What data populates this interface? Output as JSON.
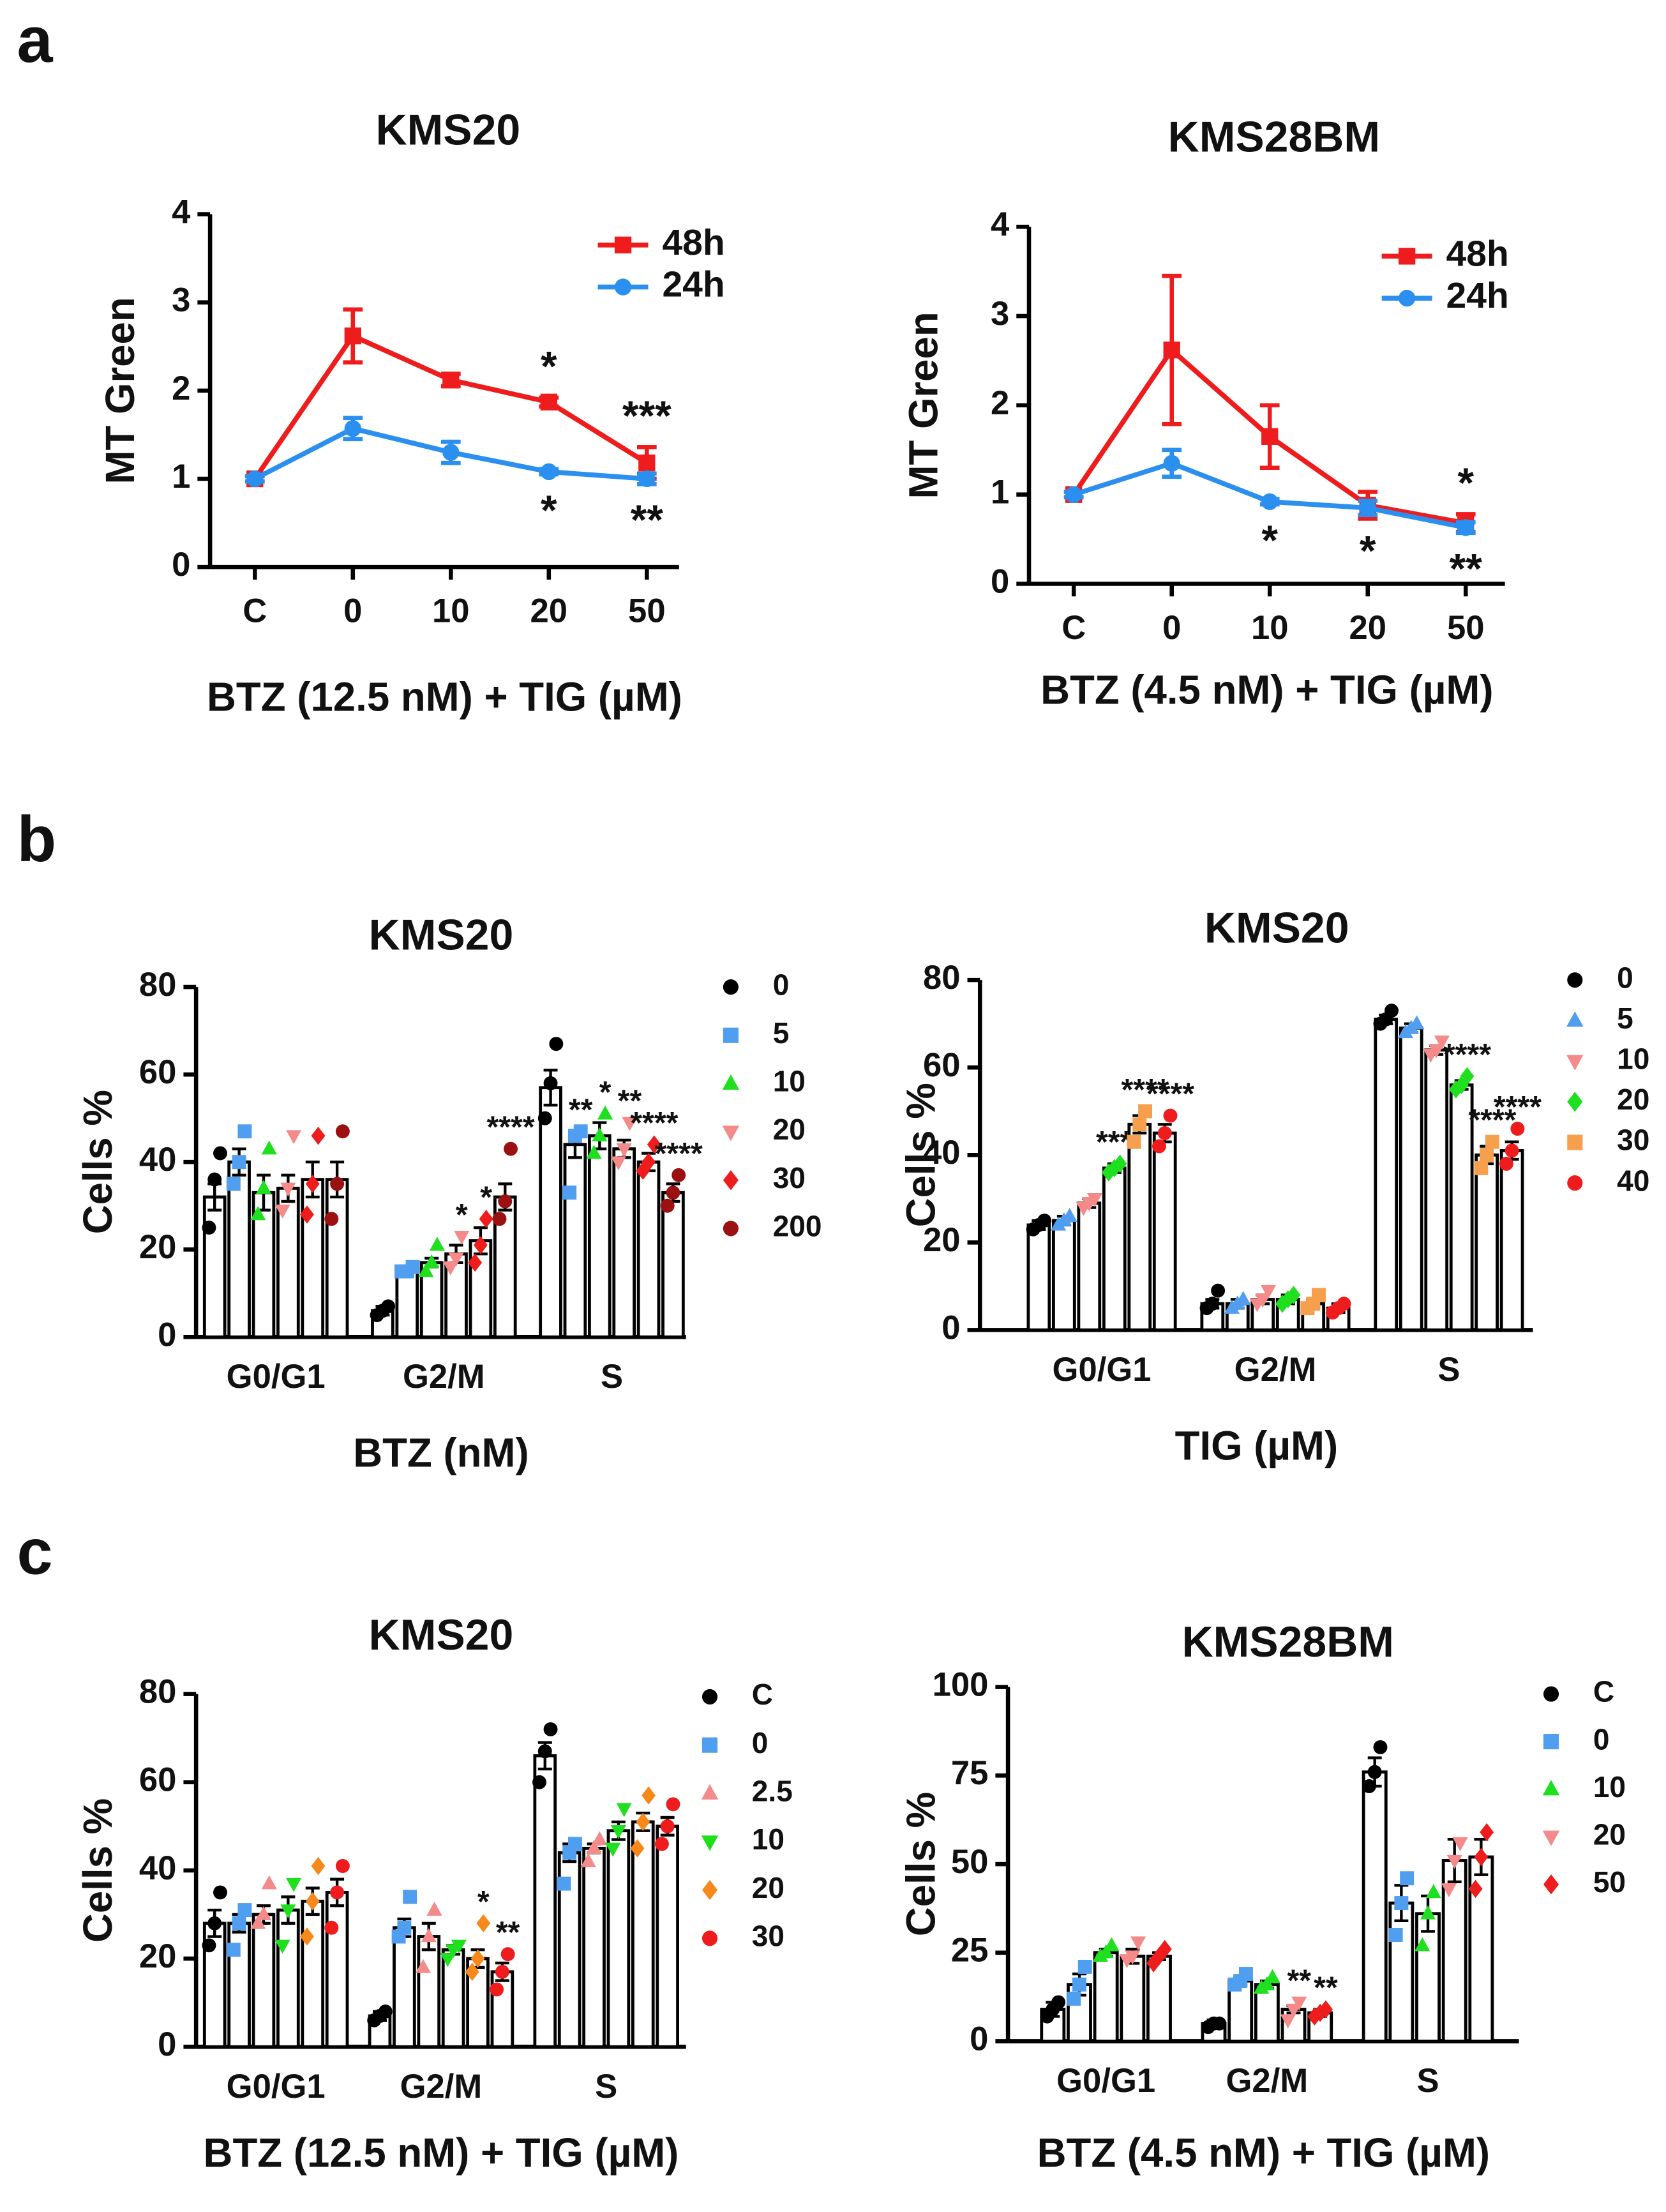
{
  "panel_labels": [
    "a",
    "b",
    "c"
  ],
  "chart_data": [
    {
      "type": "line",
      "title": "KMS20",
      "x_label": "BTZ (12.5 nM) + TIG (µM)",
      "y_label": "MT Green",
      "categories": [
        "C",
        "0",
        "10",
        "20",
        "50"
      ],
      "ylim": [
        0,
        4
      ],
      "yticks": [
        0,
        1,
        2,
        3,
        4
      ],
      "legend": "upper right",
      "series": [
        {
          "name": "48h",
          "color": "#ee1c1c",
          "marker": "square",
          "values": [
            1,
            2.62,
            2.12,
            1.87,
            1.18
          ],
          "errors": [
            0.03,
            0.3,
            0.07,
            0.05,
            0.18
          ],
          "labels": [
            null,
            null,
            null,
            "*",
            "***"
          ]
        },
        {
          "name": "24h",
          "color": "#2b8ff0",
          "marker": "circle",
          "values": [
            1,
            1.57,
            1.3,
            1.08,
            1.0
          ],
          "errors": [
            0.03,
            0.12,
            0.12,
            0.03,
            0.06
          ],
          "labels": [
            null,
            null,
            null,
            "*",
            "**"
          ]
        }
      ]
    },
    {
      "type": "line",
      "title": "KMS28BM",
      "x_label": "BTZ (4.5 nM) + TIG (µM)",
      "y_label": "MT Green",
      "categories": [
        "C",
        "0",
        "10",
        "20",
        "50"
      ],
      "ylim": [
        0,
        4
      ],
      "yticks": [
        0,
        1,
        2,
        3,
        4
      ],
      "legend": "upper right",
      "series": [
        {
          "name": "48h",
          "color": "#ee1c1c",
          "marker": "square",
          "values": [
            1,
            2.62,
            1.65,
            0.88,
            0.68
          ],
          "errors": [
            0.03,
            0.83,
            0.35,
            0.15,
            0.1
          ],
          "labels": [
            null,
            null,
            null,
            null,
            "*"
          ]
        },
        {
          "name": "24h",
          "color": "#2b8ff0",
          "marker": "circle",
          "values": [
            1,
            1.35,
            0.92,
            0.85,
            0.63
          ],
          "errors": [
            0.03,
            0.15,
            0.03,
            0.08,
            0.06
          ],
          "labels": [
            null,
            null,
            "*",
            "*",
            "**"
          ]
        }
      ]
    },
    {
      "type": "bar",
      "title": "KMS20",
      "x_label": "BTZ (nM)",
      "y_label": "Cells %",
      "categories": [
        "G0/G1",
        "G2/M",
        "S"
      ],
      "ylim": [
        0,
        80
      ],
      "yticks": [
        0,
        20,
        40,
        60,
        80
      ],
      "legend": "right",
      "series": [
        {
          "name": "0",
          "color": "#000000",
          "marker": "circle",
          "values": [
            32,
            6,
            57
          ],
          "errors": [
            3,
            1,
            4
          ],
          "points": [
            [
              25,
              36,
              42
            ],
            [
              5,
              6,
              7
            ],
            [
              50,
              58,
              67
            ]
          ],
          "labels": [
            null,
            null,
            null
          ]
        },
        {
          "name": "5",
          "color": "#4f9ef0",
          "marker": "square",
          "values": [
            40,
            15,
            44
          ],
          "errors": [
            3,
            1,
            3
          ],
          "points": [
            [
              35,
              40,
              47
            ],
            [
              15,
              15,
              16
            ],
            [
              33,
              46,
              47
            ]
          ],
          "labels": [
            null,
            null,
            "**"
          ]
        },
        {
          "name": "10",
          "color": "#1ee01e",
          "marker": "triangle",
          "values": [
            33,
            17,
            46
          ],
          "errors": [
            4,
            1,
            3
          ],
          "points": [
            [
              28,
              34,
              43
            ],
            [
              15,
              17,
              21
            ],
            [
              42,
              46,
              51
            ]
          ],
          "labels": [
            null,
            null,
            "*"
          ]
        },
        {
          "name": "20",
          "color": "#f48a8a",
          "marker": "triangle-down",
          "values": [
            34,
            19,
            43
          ],
          "errors": [
            3,
            2,
            2
          ],
          "points": [
            [
              29,
              34,
              46
            ],
            [
              16,
              18,
              23
            ],
            [
              40,
              43,
              49
            ]
          ],
          "labels": [
            null,
            "*",
            "**"
          ]
        },
        {
          "name": "30",
          "color": "#ee1c1c",
          "marker": "diamond",
          "values": [
            36,
            22,
            40
          ],
          "errors": [
            4,
            3,
            2
          ],
          "points": [
            [
              28,
              35,
              46
            ],
            [
              17,
              21,
              27
            ],
            [
              38,
              40,
              44
            ]
          ],
          "labels": [
            null,
            "*",
            "****"
          ]
        },
        {
          "name": "200",
          "color": "#9b1010",
          "marker": "circle",
          "values": [
            36,
            32,
            33
          ],
          "errors": [
            4,
            3,
            2
          ],
          "points": [
            [
              27,
              35,
              47
            ],
            [
              27,
              31,
              43
            ],
            [
              30,
              33,
              37
            ]
          ],
          "labels": [
            null,
            "****",
            "****"
          ]
        }
      ]
    },
    {
      "type": "bar",
      "title": "KMS20",
      "x_label": "TIG (µM)",
      "y_label": "Cells %",
      "categories": [
        "G0/G1",
        "G2/M",
        "S"
      ],
      "ylim": [
        0,
        80
      ],
      "yticks": [
        0,
        20,
        40,
        60,
        80
      ],
      "legend": "right",
      "series": [
        {
          "name": "0",
          "color": "#000000",
          "marker": "circle",
          "values": [
            24,
            6,
            71
          ],
          "errors": [
            1,
            1,
            1
          ],
          "points": [
            [
              23,
              24,
              25
            ],
            [
              5,
              6,
              9
            ],
            [
              70,
              71,
              73
            ]
          ],
          "labels": [
            null,
            null,
            null
          ]
        },
        {
          "name": "5",
          "color": "#4f9ef0",
          "marker": "triangle",
          "values": [
            25,
            6,
            69
          ],
          "errors": [
            1,
            1,
            1
          ],
          "points": [
            [
              24,
              25,
              26
            ],
            [
              5,
              6,
              7
            ],
            [
              68,
              69,
              70
            ]
          ],
          "labels": [
            null,
            null,
            null
          ]
        },
        {
          "name": "10",
          "color": "#f48a8a",
          "marker": "triangle-down",
          "values": [
            29,
            7,
            64
          ],
          "errors": [
            1,
            1,
            1
          ],
          "points": [
            [
              28,
              29,
              30
            ],
            [
              6,
              7,
              9
            ],
            [
              63,
              64,
              66
            ]
          ],
          "labels": [
            null,
            null,
            null
          ]
        },
        {
          "name": "20",
          "color": "#1ee01e",
          "marker": "diamond",
          "values": [
            37,
            7,
            56
          ],
          "errors": [
            1,
            1,
            1
          ],
          "points": [
            [
              36,
              37,
              38
            ],
            [
              6,
              7,
              8
            ],
            [
              55,
              56,
              58
            ]
          ],
          "labels": [
            "****",
            null,
            "****"
          ]
        },
        {
          "name": "30",
          "color": "#f6a04e",
          "marker": "square",
          "values": [
            47,
            6,
            40
          ],
          "errors": [
            2,
            1,
            2
          ],
          "points": [
            [
              43,
              47,
              50
            ],
            [
              5,
              6,
              8
            ],
            [
              37,
              40,
              43
            ]
          ],
          "labels": [
            "****",
            null,
            "****"
          ]
        },
        {
          "name": "40",
          "color": "#ee1c1c",
          "marker": "circle",
          "values": [
            45,
            5,
            41
          ],
          "errors": [
            2,
            1,
            2
          ],
          "points": [
            [
              42,
              45,
              49
            ],
            [
              4,
              5,
              6
            ],
            [
              38,
              41,
              46
            ]
          ],
          "labels": [
            "****",
            null,
            "****"
          ]
        }
      ]
    },
    {
      "type": "bar",
      "title": "KMS20",
      "x_label": "BTZ (12.5 nM) + TIG (µM)",
      "y_label": "Cells %",
      "categories": [
        "G0/G1",
        "G2/M",
        "S"
      ],
      "ylim": [
        0,
        80
      ],
      "yticks": [
        0,
        20,
        40,
        60,
        80
      ],
      "legend": "right",
      "series": [
        {
          "name": "C",
          "color": "#000000",
          "marker": "circle",
          "values": [
            28,
            7,
            66
          ],
          "errors": [
            3,
            1,
            3
          ],
          "points": [
            [
              23,
              28,
              35
            ],
            [
              6,
              7,
              8
            ],
            [
              60,
              67,
              72
            ]
          ],
          "labels": [
            null,
            null,
            null
          ]
        },
        {
          "name": "0",
          "color": "#4f9ef0",
          "marker": "square",
          "values": [
            28,
            27,
            44
          ],
          "errors": [
            2,
            2,
            2
          ],
          "points": [
            [
              22,
              28,
              31
            ],
            [
              25,
              27,
              34
            ],
            [
              37,
              44,
              46
            ]
          ],
          "labels": [
            null,
            null,
            null
          ]
        },
        {
          "name": "2.5",
          "color": "#f48a8a",
          "marker": "triangle",
          "values": [
            30,
            25,
            45
          ],
          "errors": [
            2,
            3,
            1
          ],
          "points": [
            [
              28,
              30,
              37
            ],
            [
              18,
              25,
              31
            ],
            [
              42,
              45,
              47
            ]
          ],
          "labels": [
            null,
            null,
            null
          ]
        },
        {
          "name": "10",
          "color": "#1ee01e",
          "marker": "triangle-down",
          "values": [
            31,
            22,
            49
          ],
          "errors": [
            3,
            1,
            2
          ],
          "points": [
            [
              23,
              31,
              37
            ],
            [
              20,
              22,
              23
            ],
            [
              45,
              49,
              54
            ]
          ],
          "labels": [
            null,
            null,
            null
          ]
        },
        {
          "name": "20",
          "color": "#f7891c",
          "marker": "diamond",
          "values": [
            33,
            20,
            51
          ],
          "errors": [
            3,
            2,
            2
          ],
          "points": [
            [
              25,
              33,
              41
            ],
            [
              17,
              20,
              28
            ],
            [
              45,
              51,
              57
            ]
          ],
          "labels": [
            null,
            "*",
            null
          ]
        },
        {
          "name": "30",
          "color": "#ee1c1c",
          "marker": "circle",
          "values": [
            35,
            17,
            50
          ],
          "errors": [
            3,
            2,
            2
          ],
          "points": [
            [
              27,
              35,
              41
            ],
            [
              13,
              17,
              21
            ],
            [
              46,
              50,
              55
            ]
          ],
          "labels": [
            null,
            "**",
            null
          ]
        }
      ]
    },
    {
      "type": "bar",
      "title": "KMS28BM",
      "x_label": "BTZ (4.5 nM) + TIG (µM)",
      "y_label": "Cells %",
      "categories": [
        "G0/G1",
        "G2/M",
        "S"
      ],
      "ylim": [
        0,
        100
      ],
      "yticks": [
        0,
        25,
        50,
        75,
        100
      ],
      "legend": "right",
      "series": [
        {
          "name": "C",
          "color": "#000000",
          "marker": "circle",
          "values": [
            9,
            5,
            76
          ],
          "errors": [
            2,
            1,
            4
          ],
          "points": [
            [
              7,
              9,
              11
            ],
            [
              4,
              5,
              5
            ],
            [
              72,
              76,
              83
            ]
          ],
          "labels": [
            null,
            null,
            null
          ]
        },
        {
          "name": "0",
          "color": "#4f9ef0",
          "marker": "square",
          "values": [
            16,
            17,
            39
          ],
          "errors": [
            3,
            1,
            5
          ],
          "points": [
            [
              12,
              16,
              21
            ],
            [
              16,
              17,
              19
            ],
            [
              30,
              39,
              46
            ]
          ],
          "labels": [
            null,
            null,
            null
          ]
        },
        {
          "name": "10",
          "color": "#1ee01e",
          "marker": "triangle",
          "values": [
            25,
            16,
            36
          ],
          "errors": [
            1,
            1,
            5
          ],
          "points": [
            [
              24,
              25,
              27
            ],
            [
              15,
              16,
              18
            ],
            [
              27,
              36,
              42
            ]
          ],
          "labels": [
            null,
            null,
            null
          ]
        },
        {
          "name": "20",
          "color": "#f48a8a",
          "marker": "triangle-down",
          "values": [
            24,
            9,
            51
          ],
          "errors": [
            2,
            1,
            6
          ],
          "points": [
            [
              23,
              24,
              28
            ],
            [
              6,
              9,
              11
            ],
            [
              43,
              51,
              56
            ]
          ],
          "labels": [
            null,
            "**",
            null
          ]
        },
        {
          "name": "50",
          "color": "#ee1c1c",
          "marker": "diamond",
          "values": [
            24,
            8,
            52
          ],
          "errors": [
            1,
            1,
            5
          ],
          "points": [
            [
              22,
              24,
              26
            ],
            [
              7,
              8,
              9
            ],
            [
              43,
              52,
              59
            ]
          ],
          "labels": [
            null,
            "**",
            null
          ]
        }
      ]
    }
  ]
}
